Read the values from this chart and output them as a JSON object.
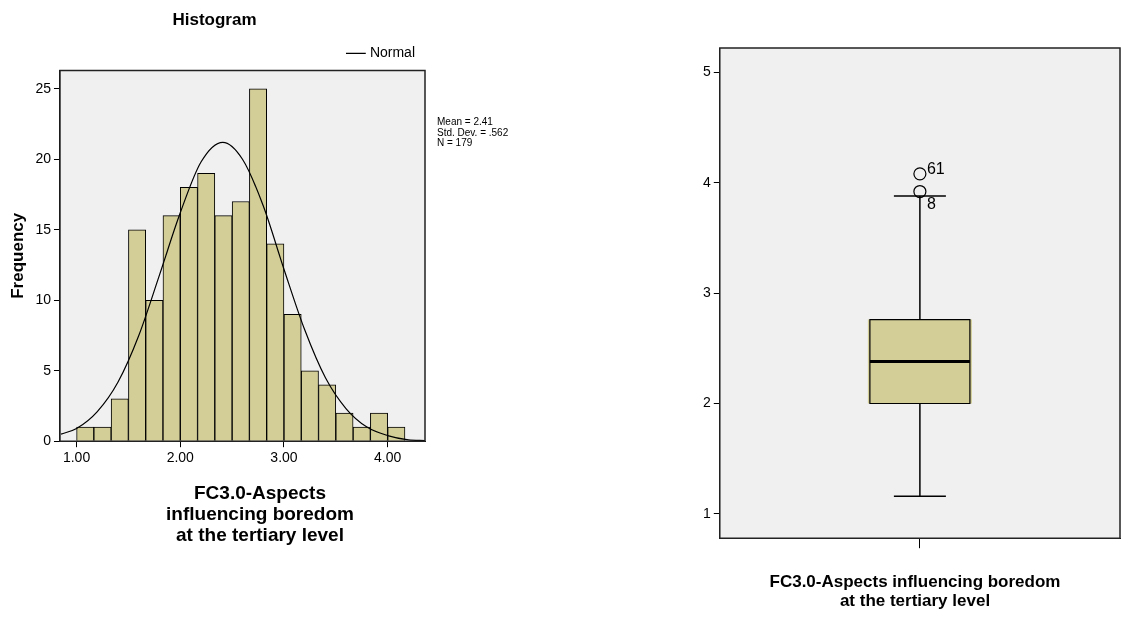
{
  "chart_data": [
    {
      "type": "histogram",
      "title": "Histogram",
      "xlabel": "FC3.0-Aspects influencing boredom at the tertiary level",
      "ylabel": "Frequency",
      "bins": [
        1,
        1.167,
        1.333,
        1.5,
        1.667,
        1.833,
        2,
        2.167,
        2.333,
        2.5,
        2.667,
        2.833,
        3,
        3.167,
        3.333,
        3.5,
        3.667,
        3.833,
        4,
        4.167
      ],
      "series": [
        {
          "type": "histogram",
          "color": "#d3ce98",
          "values": [
            1,
            1,
            3,
            15,
            10,
            16,
            18,
            19,
            16,
            17,
            25,
            14,
            9,
            5,
            4,
            2,
            1,
            2,
            1
          ]
        },
        {
          "type": "line",
          "name": "Normal",
          "color": "#000000",
          "x": [
            0.85,
            1,
            1.2,
            1.4,
            1.6,
            1.8,
            2,
            2.2,
            2.41,
            2.6,
            2.8,
            3,
            3.2,
            3.4,
            3.6,
            3.8,
            4,
            4.2,
            4.36
          ],
          "values": [
            0.5,
            0.9,
            2.1,
            4.2,
            7.5,
            11.8,
            16.2,
            19.8,
            21.2,
            20,
            16.7,
            12.2,
            7.9,
            4.5,
            2.3,
            1,
            0.4,
            0.1,
            0.05
          ]
        }
      ],
      "xlim": [
        0.84,
        4.36
      ],
      "xticks": [
        {
          "value": 1,
          "label": "1.00"
        },
        {
          "value": 2,
          "label": "2.00"
        },
        {
          "value": 3,
          "label": "3.00"
        },
        {
          "value": 4,
          "label": "4.00"
        }
      ],
      "ylim": [
        0,
        26.3
      ],
      "yticks": [
        0,
        5,
        10,
        15,
        20,
        25
      ],
      "legend": "top right",
      "grid": false,
      "marker": "none",
      "annotations": [
        "Mean = 2.41",
        "Std. Dev. = .562",
        "N = 179"
      ]
    },
    {
      "type": "box",
      "xlabel": "FC3.0-Aspects influencing boredom at the tertiary level",
      "categories": [
        null
      ],
      "color": "#d3ce98",
      "boxes": [
        {
          "low": 1.16,
          "q1": 2.0,
          "median": 2.38,
          "q3": 2.76,
          "high": 3.88,
          "outliers": [
            4.08,
            3.92
          ]
        }
      ],
      "ylim": [
        0.78,
        5.22
      ],
      "yticks": [
        1,
        2,
        3,
        4,
        5
      ],
      "grid": false,
      "annotations": [
        "61",
        "8"
      ]
    }
  ]
}
